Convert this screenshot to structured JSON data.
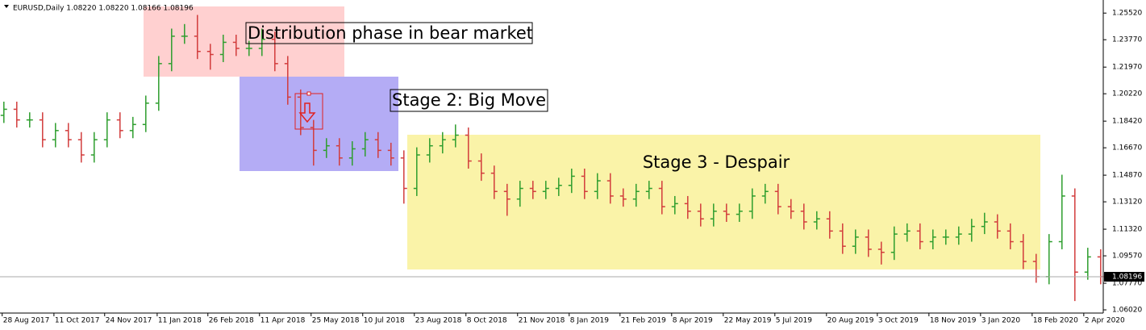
{
  "chart_data": {
    "type": "ohlc",
    "title": "EURUSD,Daily  1.08220 1.08220 1.08166 1.08196",
    "up_color": "#2e9e2e",
    "down_color": "#d23c3c",
    "open": [
      1.188,
      1.192,
      1.185,
      1.185,
      1.172,
      1.178,
      1.172,
      1.162,
      1.172,
      1.185,
      1.178,
      1.182,
      1.196,
      1.222,
      1.24,
      1.24,
      1.23,
      1.228,
      1.236,
      1.232,
      1.232,
      1.238,
      1.222,
      1.2,
      1.18,
      1.165,
      1.168,
      1.16,
      1.166,
      1.172,
      1.165,
      1.16,
      1.14,
      1.162,
      1.168,
      1.172,
      1.175,
      1.158,
      1.15,
      1.138,
      1.133,
      1.14,
      1.138,
      1.14,
      1.142,
      1.148,
      1.138,
      1.145,
      1.135,
      1.133,
      1.138,
      1.14,
      1.128,
      1.13,
      1.125,
      1.12,
      1.125,
      1.123,
      1.125,
      1.135,
      1.138,
      1.128,
      1.125,
      1.118,
      1.12,
      1.112,
      1.102,
      1.108,
      1.1,
      1.098,
      1.11,
      1.112,
      1.105,
      1.108,
      1.108,
      1.11,
      1.115,
      1.118,
      1.112,
      1.105,
      1.092,
      1.082,
      1.105,
      1.135,
      1.085,
      1.095
    ],
    "high": [
      1.197,
      1.197,
      1.19,
      1.19,
      1.183,
      1.183,
      1.177,
      1.177,
      1.19,
      1.19,
      1.187,
      1.201,
      1.227,
      1.245,
      1.248,
      1.254,
      1.235,
      1.241,
      1.241,
      1.237,
      1.245,
      1.243,
      1.227,
      1.205,
      1.185,
      1.173,
      1.173,
      1.171,
      1.177,
      1.177,
      1.17,
      1.165,
      1.167,
      1.173,
      1.177,
      1.182,
      1.18,
      1.163,
      1.155,
      1.143,
      1.145,
      1.145,
      1.145,
      1.147,
      1.153,
      1.153,
      1.15,
      1.15,
      1.14,
      1.143,
      1.145,
      1.145,
      1.135,
      1.135,
      1.13,
      1.13,
      1.13,
      1.13,
      1.14,
      1.143,
      1.143,
      1.133,
      1.13,
      1.125,
      1.125,
      1.117,
      1.113,
      1.113,
      1.105,
      1.115,
      1.117,
      1.117,
      1.113,
      1.113,
      1.115,
      1.12,
      1.124,
      1.123,
      1.117,
      1.11,
      1.097,
      1.11,
      1.149,
      1.14,
      1.101,
      1.1
    ],
    "low": [
      1.183,
      1.18,
      1.18,
      1.167,
      1.167,
      1.167,
      1.157,
      1.157,
      1.167,
      1.173,
      1.173,
      1.177,
      1.191,
      1.217,
      1.235,
      1.225,
      1.218,
      1.223,
      1.227,
      1.227,
      1.227,
      1.217,
      1.195,
      1.175,
      1.155,
      1.16,
      1.155,
      1.155,
      1.161,
      1.16,
      1.155,
      1.13,
      1.135,
      1.157,
      1.163,
      1.167,
      1.153,
      1.145,
      1.133,
      1.122,
      1.128,
      1.133,
      1.133,
      1.135,
      1.137,
      1.133,
      1.133,
      1.13,
      1.128,
      1.128,
      1.133,
      1.123,
      1.123,
      1.12,
      1.115,
      1.115,
      1.118,
      1.118,
      1.12,
      1.13,
      1.123,
      1.12,
      1.113,
      1.113,
      1.107,
      1.097,
      1.097,
      1.095,
      1.09,
      1.093,
      1.105,
      1.1,
      1.1,
      1.103,
      1.103,
      1.105,
      1.11,
      1.107,
      1.1,
      1.087,
      1.078,
      1.077,
      1.1,
      1.066,
      1.08,
      1.077
    ],
    "close": [
      1.192,
      1.185,
      1.185,
      1.172,
      1.178,
      1.172,
      1.162,
      1.172,
      1.185,
      1.178,
      1.182,
      1.196,
      1.222,
      1.24,
      1.24,
      1.23,
      1.228,
      1.236,
      1.232,
      1.232,
      1.238,
      1.222,
      1.2,
      1.18,
      1.165,
      1.168,
      1.16,
      1.166,
      1.172,
      1.165,
      1.16,
      1.14,
      1.162,
      1.168,
      1.172,
      1.175,
      1.158,
      1.15,
      1.138,
      1.133,
      1.14,
      1.138,
      1.14,
      1.142,
      1.148,
      1.138,
      1.145,
      1.135,
      1.133,
      1.138,
      1.14,
      1.128,
      1.13,
      1.125,
      1.12,
      1.125,
      1.123,
      1.125,
      1.135,
      1.138,
      1.128,
      1.125,
      1.118,
      1.12,
      1.112,
      1.102,
      1.108,
      1.1,
      1.098,
      1.11,
      1.112,
      1.105,
      1.108,
      1.108,
      1.11,
      1.115,
      1.118,
      1.112,
      1.105,
      1.092,
      1.082,
      1.105,
      1.135,
      1.085,
      1.095,
      1.082
    ],
    "last_price": {
      "value": 1.08196,
      "label": "1.08196"
    },
    "xlim": [
      -0.3,
      85.2
    ],
    "ylim": [
      1.0581,
      1.2638
    ],
    "xticks": [
      {
        "value": -0.13,
        "label": "28 Aug 2017"
      },
      {
        "value": 3.88,
        "label": "11 Oct 2017"
      },
      {
        "value": 7.81,
        "label": "24 Nov 2017"
      },
      {
        "value": 11.88,
        "label": "11 Jan 2018"
      },
      {
        "value": 15.81,
        "label": "26 Feb 2018"
      },
      {
        "value": 19.81,
        "label": "11 Apr 2018"
      },
      {
        "value": 23.81,
        "label": "25 May 2018"
      },
      {
        "value": 27.81,
        "label": "10 Jul 2018"
      },
      {
        "value": 31.81,
        "label": "23 Aug 2018"
      },
      {
        "value": 35.81,
        "label": "8 Oct 2018"
      },
      {
        "value": 39.81,
        "label": "21 Nov 2018"
      },
      {
        "value": 43.81,
        "label": "8 Jan 2019"
      },
      {
        "value": 47.75,
        "label": "21 Feb 2019"
      },
      {
        "value": 51.75,
        "label": "8 Apr 2019"
      },
      {
        "value": 55.75,
        "label": "22 May 2019"
      },
      {
        "value": 59.75,
        "label": "5 Jul 2019"
      },
      {
        "value": 63.75,
        "label": "20 Aug 2019"
      },
      {
        "value": 67.69,
        "label": "3 Oct 2019"
      },
      {
        "value": 71.69,
        "label": "18 Nov 2019"
      },
      {
        "value": 75.69,
        "label": "3 Jan 2020"
      },
      {
        "value": 79.69,
        "label": "18 Feb 2020"
      },
      {
        "value": 83.69,
        "label": "2 Apr 2020"
      }
    ],
    "yticks": [
      {
        "value": 1.2552,
        "label": "1.25520"
      },
      {
        "value": 1.2377,
        "label": "1.23770"
      },
      {
        "value": 1.2197,
        "label": "1.21970"
      },
      {
        "value": 1.2022,
        "label": "1.20220"
      },
      {
        "value": 1.1842,
        "label": "1.18420"
      },
      {
        "value": 1.1667,
        "label": "1.16670"
      },
      {
        "value": 1.1487,
        "label": "1.14870"
      },
      {
        "value": 1.1312,
        "label": "1.13120"
      },
      {
        "value": 1.1132,
        "label": "1.11320"
      },
      {
        "value": 1.0957,
        "label": "1.09570"
      },
      {
        "value": 1.0777,
        "label": "1.07770"
      },
      {
        "value": 1.0602,
        "label": "1.06020"
      }
    ],
    "annotations": [
      "Distribution phase in bear market",
      "Stage 2: Big Move",
      "Stage 3 - Despair"
    ]
  }
}
